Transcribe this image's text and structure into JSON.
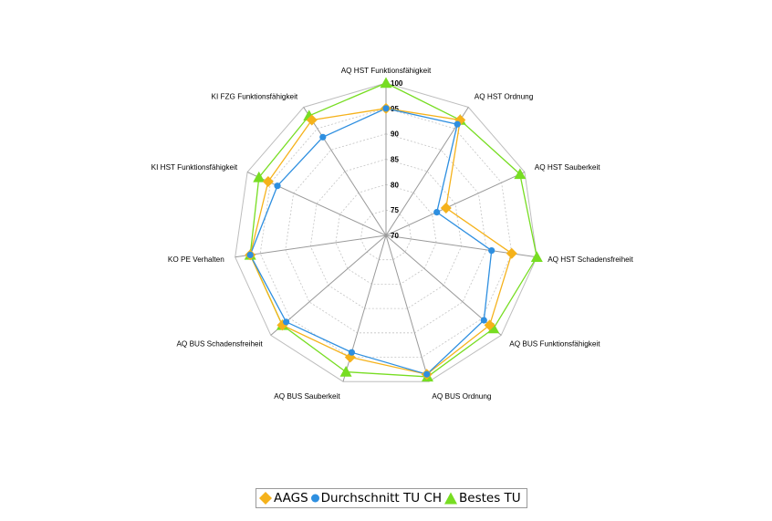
{
  "chart_data": {
    "type": "radar",
    "title": "",
    "categories": [
      "AQ HST Funktionsfähigkeit",
      "AQ HST Ordnung",
      "AQ HST Sauberkeit",
      "AQ HST Schadensfreiheit",
      "AQ BUS Funktionsfähigkeit",
      "AQ BUS Ordnung",
      "AQ BUS Sauberkeit",
      "AQ BUS Schadensfreiheit",
      "KO PE Verhalten",
      "KI HST Funktionsfähigkeit",
      "KI FZG Funktionsfähigkeit"
    ],
    "rlim": [
      70,
      100
    ],
    "ticks": [
      70,
      75,
      80,
      85,
      90,
      95,
      100
    ],
    "tick_labels": [
      "70",
      "75",
      "80",
      "85",
      "90",
      "95",
      "100"
    ],
    "grid": true,
    "legend_position": "bottom",
    "series": [
      {
        "name": "AAGS",
        "color": "#f5b21b",
        "marker": "diamond",
        "values": [
          95,
          97,
          83,
          95,
          97,
          98.5,
          95,
          97,
          97,
          95.5,
          97
        ]
      },
      {
        "name": "Durchschnitt TU CH",
        "color": "#2e8fe0",
        "marker": "circle",
        "values": [
          95,
          96,
          81,
          91,
          95.5,
          98.5,
          94,
          96,
          97,
          93.5,
          93
        ]
      },
      {
        "name": "Bestes TU",
        "color": "#77dd22",
        "marker": "triangle",
        "values": [
          100,
          97,
          99,
          100,
          98,
          99,
          98,
          97,
          97,
          97.5,
          98
        ]
      }
    ]
  }
}
